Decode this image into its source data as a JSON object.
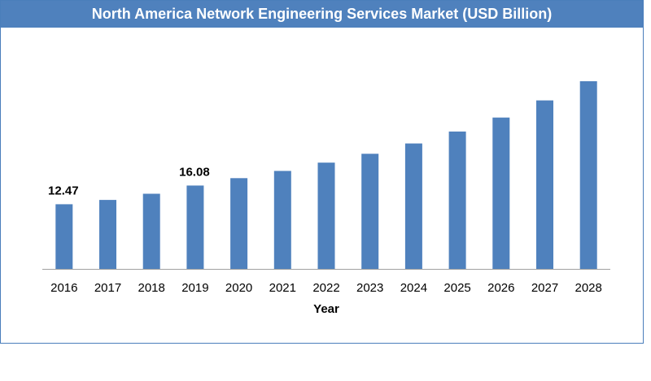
{
  "chart_data": {
    "type": "bar",
    "title": "North America Network Engineering Services Market (USD Billion)",
    "xlabel": "Year",
    "ylabel": "",
    "categories": [
      "2016",
      "2017",
      "2018",
      "2019",
      "2020",
      "2021",
      "2022",
      "2023",
      "2024",
      "2025",
      "2026",
      "2027",
      "2028"
    ],
    "values": [
      12.47,
      13.3,
      14.5,
      16.08,
      17.5,
      18.9,
      20.5,
      22.2,
      24.2,
      26.5,
      29.2,
      32.5,
      36.2
    ],
    "data_labels": [
      {
        "category": "2016",
        "text": "12.47"
      },
      {
        "category": "2019",
        "text": "16.08"
      }
    ],
    "ylim": [
      0,
      36.2
    ],
    "grid": false,
    "legend": "none",
    "bar_color": "#4f81bd"
  }
}
